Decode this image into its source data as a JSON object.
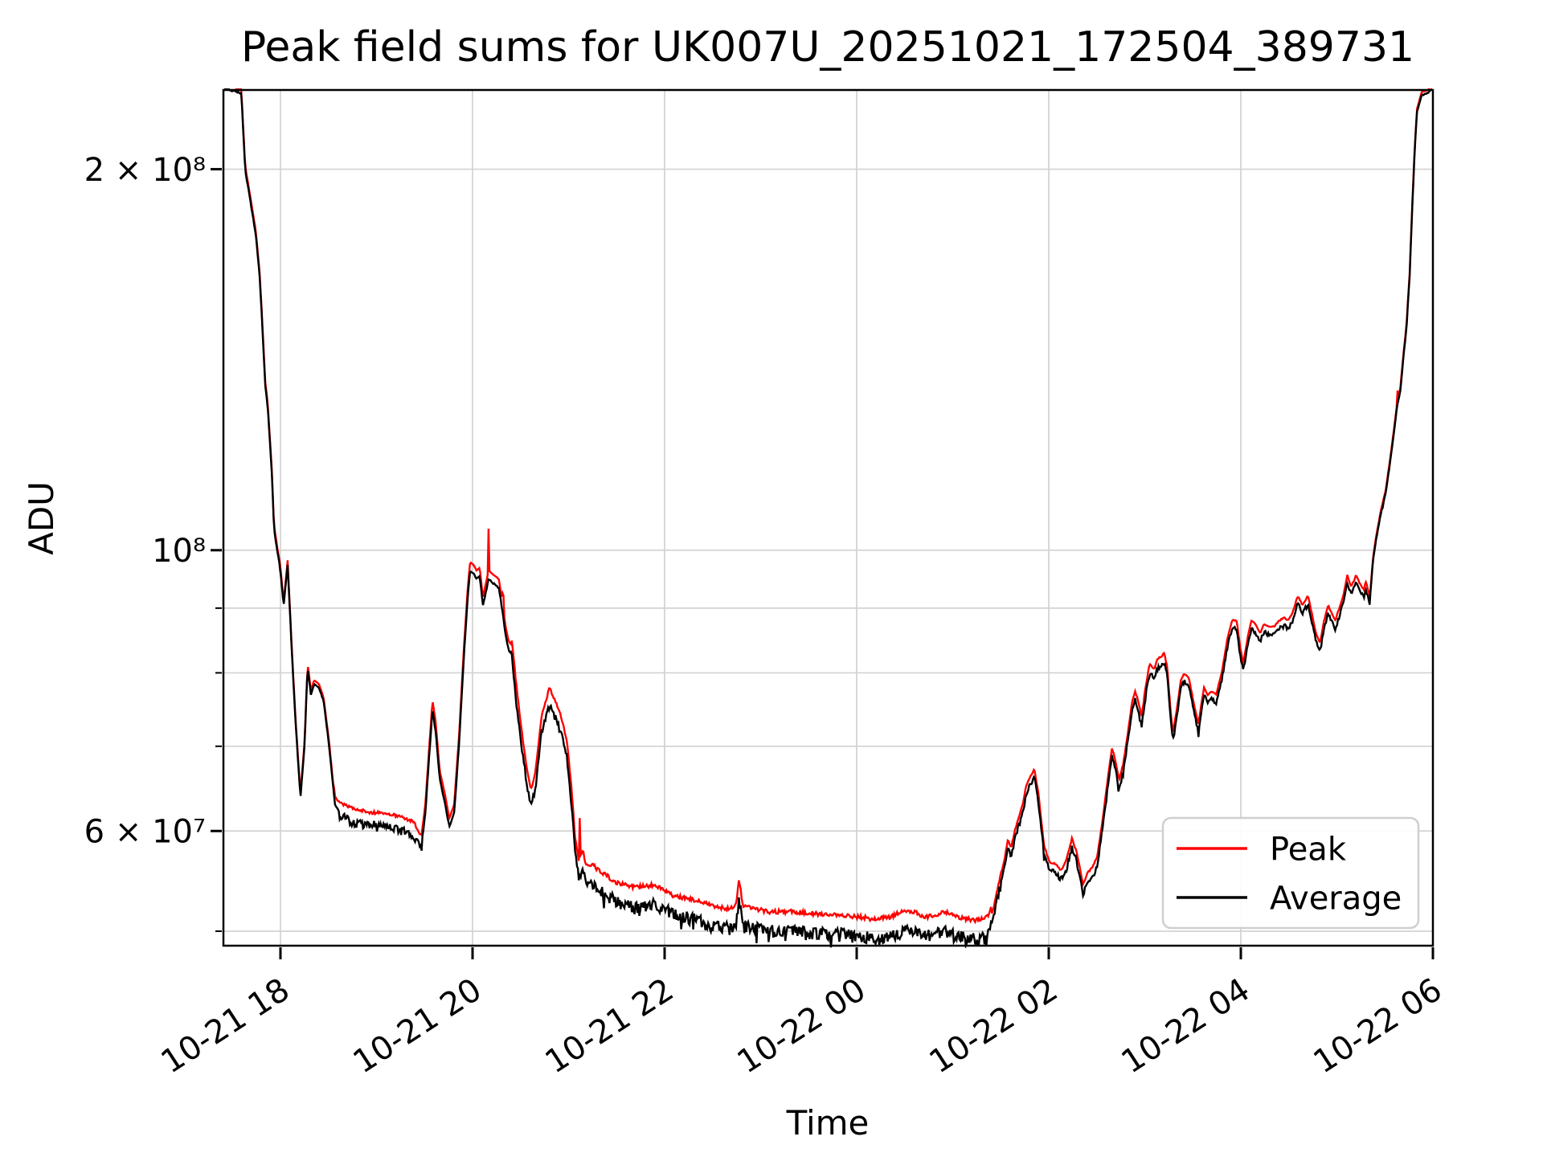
{
  "title": "Peak field sums for UK007U_20251021_172504_389731",
  "xlabel": "Time",
  "ylabel": "ADU",
  "legend": {
    "position": "lower right",
    "entries": [
      {
        "label": "Peak",
        "color": "#ff0000"
      },
      {
        "label": "Average",
        "color": "#000000"
      }
    ]
  },
  "colors": {
    "background": "#ffffff",
    "grid": "#d2d2d2",
    "spine": "#000000",
    "peak": "#ff0000",
    "average": "#000000",
    "legend_border": "#cfcfcf"
  },
  "axes": {
    "x_ticks": [
      {
        "label": "10-21 18",
        "hour": 18
      },
      {
        "label": "10-21 20",
        "hour": 20
      },
      {
        "label": "10-21 22",
        "hour": 22
      },
      {
        "label": "10-22 00",
        "hour": 24
      },
      {
        "label": "10-22 02",
        "hour": 26
      },
      {
        "label": "10-22 04",
        "hour": 28
      },
      {
        "label": "10-22 06",
        "hour": 30
      }
    ],
    "x_range_hours": [
      17.406,
      30.0
    ],
    "y_ticks": [
      {
        "label": "2 × 10⁸",
        "value": 200000000
      },
      {
        "label": "10⁸",
        "value": 100000000
      },
      {
        "label": "6 × 10⁷",
        "value": 60000000
      }
    ],
    "y_minor_unlabeled": [
      90000000,
      80000000,
      70000000,
      50000000
    ],
    "y_grid_values": [
      200000000,
      100000000,
      90000000,
      80000000,
      70000000,
      60000000,
      50000000
    ],
    "y_range": [
      48700000,
      231000000
    ],
    "y_scale": "log",
    "grid": true
  },
  "chart_data": {
    "type": "line",
    "title": "Peak field sums for UK007U_20251021_172504_389731",
    "xlabel": "Time",
    "ylabel": "ADU",
    "x_unit": "hours, 24 = 10-22 00:00; data span 10-21 17:24 to 10-22 06:00",
    "y_unit": "ADU (values below in millions of ADU)",
    "ylog": true,
    "series": [
      {
        "name": "Average",
        "color": "#000000",
        "points_t_v": [
          [
            17.406,
            232
          ],
          [
            17.592,
            230
          ],
          [
            17.633,
            200
          ],
          [
            17.717,
            183
          ],
          [
            17.742,
            178
          ],
          [
            17.783,
            165
          ],
          [
            17.808,
            152
          ],
          [
            17.842,
            135
          ],
          [
            17.867,
            130
          ],
          [
            17.908,
            116
          ],
          [
            17.933,
            104
          ],
          [
            17.967,
            100
          ],
          [
            18.0,
            96.5
          ],
          [
            18.033,
            90.5
          ],
          [
            18.075,
            97.5
          ],
          [
            18.117,
            83.5
          ],
          [
            18.158,
            73
          ],
          [
            18.208,
            63.8
          ],
          [
            18.25,
            70
          ],
          [
            18.283,
            81
          ],
          [
            18.317,
            77
          ],
          [
            18.35,
            78.5
          ],
          [
            18.4,
            78
          ],
          [
            18.45,
            76
          ],
          [
            18.508,
            70
          ],
          [
            18.567,
            63
          ],
          [
            18.625,
            62
          ],
          [
            18.758,
            61.5
          ],
          [
            18.925,
            61
          ],
          [
            19.092,
            61
          ],
          [
            19.258,
            60.5
          ],
          [
            19.383,
            60
          ],
          [
            19.467,
            58.5
          ],
          [
            19.508,
            62
          ],
          [
            19.55,
            69
          ],
          [
            19.583,
            75
          ],
          [
            19.617,
            72
          ],
          [
            19.658,
            66
          ],
          [
            19.717,
            63
          ],
          [
            19.758,
            60.5
          ],
          [
            19.808,
            62
          ],
          [
            19.858,
            70
          ],
          [
            19.908,
            82
          ],
          [
            19.95,
            92
          ],
          [
            19.975,
            96.5
          ],
          [
            20.008,
            96
          ],
          [
            20.042,
            95
          ],
          [
            20.075,
            95.5
          ],
          [
            20.108,
            90.5
          ],
          [
            20.142,
            93
          ],
          [
            20.167,
            95
          ],
          [
            20.2,
            94.5
          ],
          [
            20.242,
            94
          ],
          [
            20.275,
            93.5
          ],
          [
            20.308,
            90
          ],
          [
            20.342,
            86
          ],
          [
            20.375,
            83.5
          ],
          [
            20.408,
            83
          ],
          [
            20.467,
            75
          ],
          [
            20.525,
            69
          ],
          [
            20.575,
            65
          ],
          [
            20.608,
            63
          ],
          [
            20.658,
            65.5
          ],
          [
            20.717,
            72
          ],
          [
            20.8,
            76
          ],
          [
            20.883,
            73.5
          ],
          [
            20.925,
            72
          ],
          [
            20.983,
            69
          ],
          [
            21.033,
            63
          ],
          [
            21.067,
            58
          ],
          [
            21.108,
            55.5
          ],
          [
            21.15,
            56.5
          ],
          [
            21.183,
            55
          ],
          [
            21.258,
            55
          ],
          [
            21.3,
            54.5
          ],
          [
            21.383,
            54
          ],
          [
            21.508,
            53.2
          ],
          [
            21.675,
            52.8
          ],
          [
            21.892,
            53
          ],
          [
            22.092,
            52
          ],
          [
            22.342,
            51.5
          ],
          [
            22.508,
            51
          ],
          [
            22.633,
            50.8
          ],
          [
            22.742,
            51
          ],
          [
            22.775,
            53.5
          ],
          [
            22.817,
            51
          ],
          [
            22.925,
            50.8
          ],
          [
            23.092,
            50.5
          ],
          [
            23.342,
            50.5
          ],
          [
            23.592,
            50.3
          ],
          [
            23.842,
            50.2
          ],
          [
            23.992,
            50
          ],
          [
            24.067,
            50
          ],
          [
            24.175,
            49.8
          ],
          [
            24.342,
            50
          ],
          [
            24.467,
            50.5
          ],
          [
            24.592,
            50.5
          ],
          [
            24.717,
            50
          ],
          [
            24.842,
            50.2
          ],
          [
            24.925,
            50.5
          ],
          [
            25.05,
            50
          ],
          [
            25.175,
            49.8
          ],
          [
            25.275,
            49.7
          ],
          [
            25.358,
            50
          ],
          [
            25.425,
            51.5
          ],
          [
            25.492,
            54.5
          ],
          [
            25.533,
            56
          ],
          [
            25.575,
            58.5
          ],
          [
            25.608,
            57.5
          ],
          [
            25.65,
            59.5
          ],
          [
            25.692,
            61
          ],
          [
            25.733,
            62.5
          ],
          [
            25.767,
            64.5
          ],
          [
            25.808,
            65.5
          ],
          [
            25.85,
            66.3
          ],
          [
            25.892,
            63.5
          ],
          [
            25.95,
            57.8
          ],
          [
            26.008,
            56
          ],
          [
            26.075,
            55.8
          ],
          [
            26.125,
            55.2
          ],
          [
            26.175,
            56
          ],
          [
            26.242,
            58.5
          ],
          [
            26.292,
            57
          ],
          [
            26.358,
            53.8
          ],
          [
            26.408,
            55
          ],
          [
            26.458,
            55.5
          ],
          [
            26.508,
            56.8
          ],
          [
            26.567,
            61
          ],
          [
            26.617,
            65.5
          ],
          [
            26.658,
            69
          ],
          [
            26.692,
            67.5
          ],
          [
            26.733,
            65
          ],
          [
            26.775,
            67
          ],
          [
            26.825,
            71
          ],
          [
            26.867,
            75
          ],
          [
            26.9,
            76.5
          ],
          [
            26.933,
            75
          ],
          [
            26.967,
            73
          ],
          [
            27.008,
            77
          ],
          [
            27.05,
            80.5
          ],
          [
            27.092,
            79.5
          ],
          [
            27.133,
            81
          ],
          [
            27.175,
            81.5
          ],
          [
            27.2,
            82
          ],
          [
            27.233,
            80
          ],
          [
            27.267,
            74
          ],
          [
            27.292,
            71
          ],
          [
            27.333,
            74
          ],
          [
            27.375,
            78
          ],
          [
            27.408,
            79
          ],
          [
            27.458,
            78.5
          ],
          [
            27.508,
            75
          ],
          [
            27.558,
            72
          ],
          [
            27.592,
            75
          ],
          [
            27.617,
            77
          ],
          [
            27.658,
            76
          ],
          [
            27.7,
            76.5
          ],
          [
            27.742,
            76
          ],
          [
            27.8,
            79
          ],
          [
            27.858,
            84
          ],
          [
            27.908,
            87
          ],
          [
            27.958,
            87
          ],
          [
            27.992,
            83
          ],
          [
            28.025,
            80.5
          ],
          [
            28.067,
            84
          ],
          [
            28.108,
            87
          ],
          [
            28.15,
            86.5
          ],
          [
            28.2,
            85
          ],
          [
            28.242,
            86.5
          ],
          [
            28.292,
            86
          ],
          [
            28.342,
            86
          ],
          [
            28.4,
            87
          ],
          [
            28.45,
            87.5
          ],
          [
            28.492,
            87
          ],
          [
            28.533,
            88
          ],
          [
            28.592,
            91
          ],
          [
            28.642,
            89.5
          ],
          [
            28.7,
            91
          ],
          [
            28.742,
            88
          ],
          [
            28.783,
            85
          ],
          [
            28.825,
            83.5
          ],
          [
            28.867,
            87
          ],
          [
            28.908,
            89.5
          ],
          [
            28.95,
            88
          ],
          [
            28.983,
            87
          ],
          [
            29.025,
            89
          ],
          [
            29.067,
            91
          ],
          [
            29.108,
            94.5
          ],
          [
            29.15,
            92.5
          ],
          [
            29.2,
            94.5
          ],
          [
            29.242,
            93
          ],
          [
            29.283,
            92
          ],
          [
            29.3,
            93.5
          ],
          [
            29.342,
            91
          ],
          [
            29.375,
            98
          ],
          [
            29.408,
            102
          ],
          [
            29.458,
            107
          ],
          [
            29.508,
            111
          ],
          [
            29.558,
            118
          ],
          [
            29.6,
            125
          ],
          [
            29.633,
            131
          ],
          [
            29.658,
            133
          ],
          [
            29.692,
            142
          ],
          [
            29.725,
            150
          ],
          [
            29.758,
            165
          ],
          [
            29.783,
            185
          ],
          [
            29.808,
            205
          ],
          [
            29.833,
            222
          ],
          [
            29.883,
            229
          ],
          [
            29.95,
            230
          ],
          [
            30.0,
            232
          ]
        ]
      },
      {
        "name": "Peak",
        "color": "#ff0000",
        "relation": "Average multiplied by (1 + offset), with occasional upward spikes",
        "offset_regions_t0_t1_frac": [
          [
            17.406,
            18.55,
            0.005
          ],
          [
            18.55,
            20.4,
            0.014
          ],
          [
            20.4,
            25.4,
            0.022
          ],
          [
            25.4,
            29.35,
            0.01
          ],
          [
            29.35,
            30.0,
            0.004
          ]
        ],
        "spikes_t_v": [
          [
            18.075,
            99
          ],
          [
            20.167,
            104
          ],
          [
            20.317,
            99.5
          ],
          [
            21.117,
            62
          ],
          [
            22.775,
            54.8
          ],
          [
            24.067,
            53.5
          ],
          [
            29.633,
            136
          ]
        ]
      }
    ],
    "noise_regions_t0_t1_ampdecades": [
      [
        18.6,
        19.47,
        0.008
      ],
      [
        20.4,
        21.2,
        0.007
      ],
      [
        21.2,
        25.4,
        0.011
      ],
      [
        25.4,
        27.31,
        0.005
      ],
      [
        27.31,
        29.35,
        0.0035
      ]
    ]
  }
}
